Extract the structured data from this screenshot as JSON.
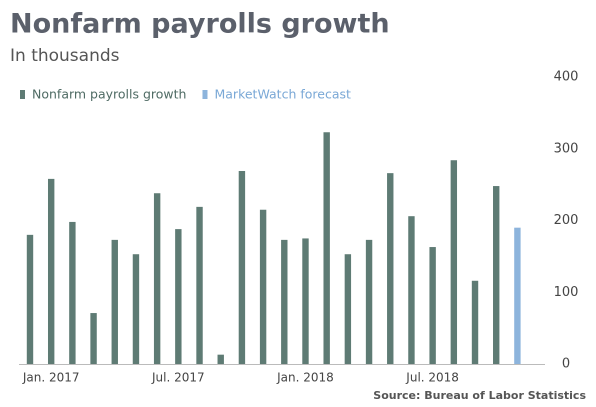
{
  "chart_data": {
    "type": "bar",
    "title": "Nonfarm payrolls growth",
    "subtitle": "In thousands",
    "source": "Source: Bureau of Labor Statistics",
    "categories": [
      null,
      "Jan. 2017",
      null,
      null,
      null,
      null,
      null,
      "Jul. 2017",
      null,
      null,
      null,
      null,
      null,
      "Jan. 2018",
      null,
      null,
      null,
      null,
      null,
      "Jul. 2018",
      null,
      null,
      null,
      null
    ],
    "series": [
      {
        "name": "Nonfarm payrolls growth",
        "color": "#5e7b74",
        "values": [
          180,
          258,
          198,
          71,
          173,
          153,
          238,
          188,
          219,
          13,
          269,
          215,
          173,
          175,
          323,
          153,
          173,
          266,
          206,
          163,
          284,
          116,
          248,
          null
        ]
      },
      {
        "name": "MarketWatch forecast",
        "color": "#8db4dc",
        "values": [
          null,
          null,
          null,
          null,
          null,
          null,
          null,
          null,
          null,
          null,
          null,
          null,
          null,
          null,
          null,
          null,
          null,
          null,
          null,
          null,
          null,
          null,
          null,
          190
        ]
      }
    ],
    "ylim": [
      0,
      400
    ],
    "yticks": [
      0,
      100,
      200,
      300,
      400
    ],
    "grid": false
  }
}
